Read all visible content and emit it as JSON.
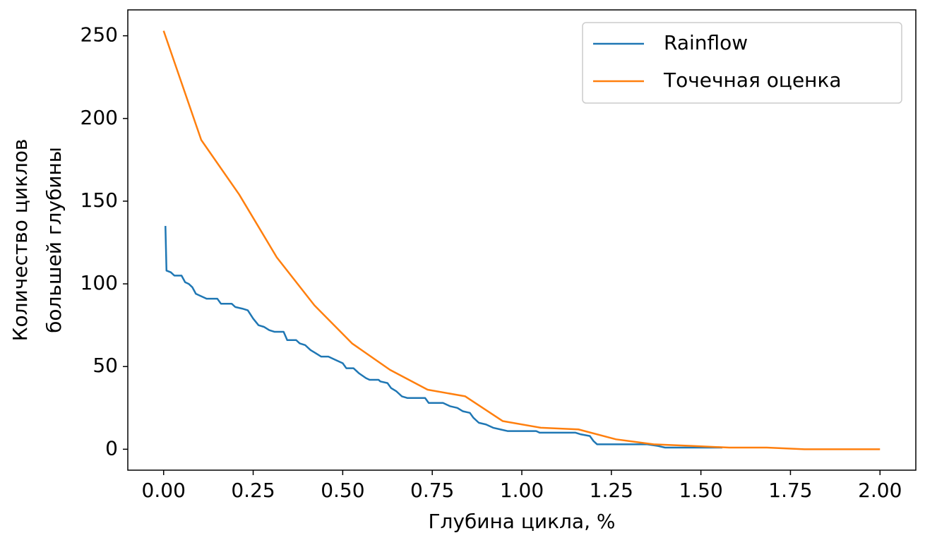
{
  "chart_data": {
    "type": "line",
    "xlabel": "Глубина цикла, %",
    "ylabel": [
      "Количество циклов",
      "большей глубины"
    ],
    "xlim": [
      -0.1,
      2.1
    ],
    "ylim": [
      -12.65,
      265.65
    ],
    "xticks": [
      {
        "value": 0,
        "label": "0.00"
      },
      {
        "value": 0.25,
        "label": "0.25"
      },
      {
        "value": 0.5,
        "label": "0.50"
      },
      {
        "value": 0.75,
        "label": "0.75"
      },
      {
        "value": 1,
        "label": "1.00"
      },
      {
        "value": 1.25,
        "label": "1.25"
      },
      {
        "value": 1.5,
        "label": "1.50"
      },
      {
        "value": 1.75,
        "label": "1.75"
      },
      {
        "value": 2,
        "label": "2.00"
      }
    ],
    "yticks": [
      0,
      50,
      100,
      150,
      200,
      250
    ],
    "legend": "upper right",
    "series": [
      {
        "name": "Rainflow",
        "color": "#1f77b4",
        "x": [
          0.005,
          0.008,
          0.02,
          0.03,
          0.05,
          0.06,
          0.07,
          0.08,
          0.09,
          0.1,
          0.12,
          0.15,
          0.16,
          0.19,
          0.2,
          0.22,
          0.235,
          0.25,
          0.265,
          0.28,
          0.295,
          0.31,
          0.335,
          0.345,
          0.37,
          0.38,
          0.395,
          0.41,
          0.425,
          0.44,
          0.46,
          0.48,
          0.5,
          0.51,
          0.53,
          0.545,
          0.565,
          0.575,
          0.6,
          0.605,
          0.625,
          0.635,
          0.65,
          0.665,
          0.68,
          0.73,
          0.74,
          0.78,
          0.8,
          0.82,
          0.835,
          0.855,
          0.865,
          0.88,
          0.9,
          0.92,
          0.94,
          0.96,
          1.04,
          1.05,
          1.15,
          1.165,
          1.19,
          1.2,
          1.21,
          1.35,
          1.38,
          1.4,
          1.56
        ],
        "values": [
          135,
          108,
          107,
          105,
          105,
          101,
          100,
          98,
          94,
          93,
          91,
          91,
          88,
          88,
          86,
          85,
          84,
          79,
          75,
          74,
          72,
          71,
          71,
          66,
          66,
          64,
          63,
          60,
          58,
          56,
          56,
          54,
          52,
          49,
          49,
          46,
          43,
          42,
          42,
          41,
          40,
          37,
          35,
          32,
          31,
          31,
          28,
          28,
          26,
          25,
          23,
          22,
          19,
          16,
          15,
          13,
          12,
          11,
          11,
          10,
          10,
          9,
          8,
          5,
          3,
          3,
          2,
          1,
          1
        ]
      },
      {
        "name": "Точечная оценка",
        "color": "#ff7f0e",
        "x": [
          0,
          0.105,
          0.211,
          0.316,
          0.421,
          0.526,
          0.632,
          0.737,
          0.842,
          0.947,
          1.053,
          1.158,
          1.263,
          1.368,
          1.474,
          1.579,
          1.684,
          1.789,
          1.895,
          2.0
        ],
        "values": [
          253,
          187,
          154,
          116,
          87,
          64,
          48,
          36,
          32,
          17,
          13,
          12,
          6,
          3,
          2,
          1,
          1,
          0,
          0,
          0
        ]
      }
    ]
  }
}
